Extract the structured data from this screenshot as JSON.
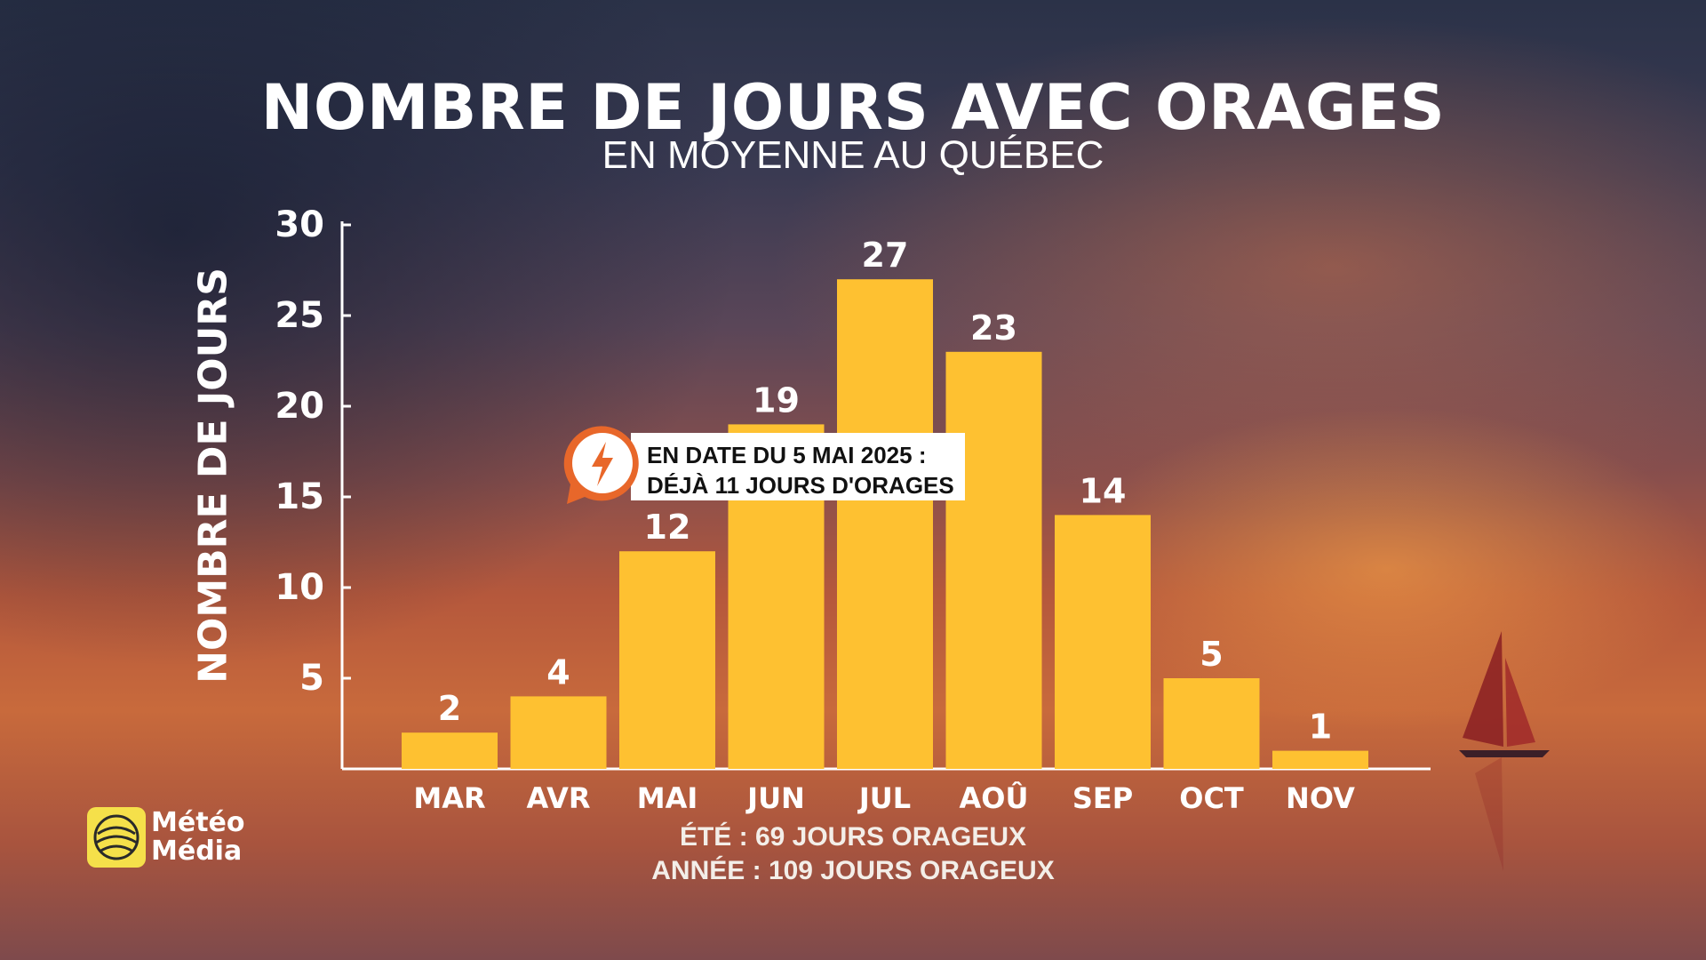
{
  "chart_data": {
    "type": "bar",
    "title": "NOMBRE DE JOURS AVEC ORAGES",
    "subtitle": "EN MOYENNE AU QUÉBEC",
    "ylabel": "NOMBRE DE JOURS",
    "xlabel": "",
    "categories": [
      "MAR",
      "AVR",
      "MAI",
      "JUN",
      "JUL",
      "AOÛ",
      "SEP",
      "OCT",
      "NOV"
    ],
    "values": [
      2,
      4,
      12,
      19,
      27,
      23,
      14,
      5,
      1
    ],
    "ylim": [
      0,
      30
    ],
    "yticks": [
      5,
      10,
      15,
      20,
      25,
      30
    ],
    "bar_color": "#fec131",
    "grid": false,
    "data_labels": true
  },
  "callout": {
    "line1": "EN DATE DU 5 MAI 2025 :",
    "line2": "DÉJÀ 11 JOURS D'ORAGES",
    "icon": "lightning-bolt-icon",
    "icon_color": "#e8672a"
  },
  "footer": {
    "line1": "ÉTÉ : 69 JOURS ORAGEUX",
    "line2": "ANNÉE : 109 JOURS ORAGEUX"
  },
  "logo": {
    "line1": "Météo",
    "line2": "Média",
    "icon": "meteomedia-globe-icon",
    "color": "#f5e04a"
  }
}
